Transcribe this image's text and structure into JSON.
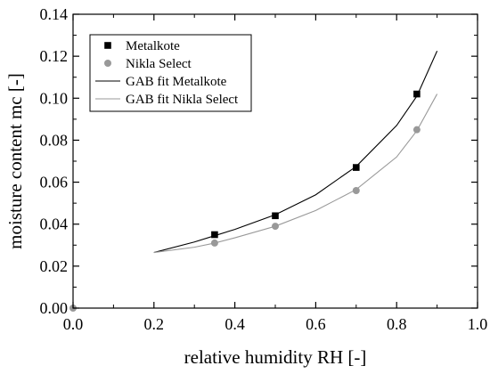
{
  "chart_data": {
    "type": "scatter",
    "xlabel": "relative humidity RH [-]",
    "ylabel": "moisture content mc [-]",
    "xlim": [
      0.0,
      1.0
    ],
    "ylim": [
      0.0,
      0.14
    ],
    "x_ticks": [
      "0.0",
      "0.2",
      "0.4",
      "0.6",
      "0.8",
      "1.0"
    ],
    "y_ticks": [
      "0.00",
      "0.02",
      "0.04",
      "0.06",
      "0.08",
      "0.10",
      "0.12",
      "0.14"
    ],
    "grid": false,
    "legend_position": "top-left",
    "series": [
      {
        "name": "Metalkote",
        "kind": "marker",
        "marker": "square",
        "color": "#000000",
        "points": [
          [
            0.35,
            0.035
          ],
          [
            0.5,
            0.044
          ],
          [
            0.7,
            0.067
          ],
          [
            0.85,
            0.102
          ]
        ]
      },
      {
        "name": "Nikla Select",
        "kind": "marker",
        "marker": "circle",
        "color": "#999999",
        "points": [
          [
            0.35,
            0.031
          ],
          [
            0.5,
            0.039
          ],
          [
            0.7,
            0.056
          ],
          [
            0.85,
            0.085
          ]
        ]
      },
      {
        "name": "GAB fit Metalkote",
        "kind": "line",
        "color": "#000000",
        "points": [
          [
            0.2,
            0.0265
          ],
          [
            0.3,
            0.0315
          ],
          [
            0.35,
            0.0345
          ],
          [
            0.4,
            0.0375
          ],
          [
            0.5,
            0.0445
          ],
          [
            0.6,
            0.054
          ],
          [
            0.7,
            0.0675
          ],
          [
            0.8,
            0.087
          ],
          [
            0.85,
            0.101
          ],
          [
            0.9,
            0.1225
          ]
        ]
      },
      {
        "name": "GAB fit Nikla Select",
        "kind": "line",
        "color": "#999999",
        "points": [
          [
            0.2,
            0.0265
          ],
          [
            0.3,
            0.029
          ],
          [
            0.35,
            0.031
          ],
          [
            0.4,
            0.0335
          ],
          [
            0.5,
            0.039
          ],
          [
            0.6,
            0.0465
          ],
          [
            0.7,
            0.0565
          ],
          [
            0.8,
            0.072
          ],
          [
            0.85,
            0.0845
          ],
          [
            0.9,
            0.102
          ]
        ]
      }
    ],
    "extra_points": [
      {
        "x": 0.0,
        "y": 0.0,
        "marker": "circle",
        "color": "#999999"
      }
    ]
  }
}
